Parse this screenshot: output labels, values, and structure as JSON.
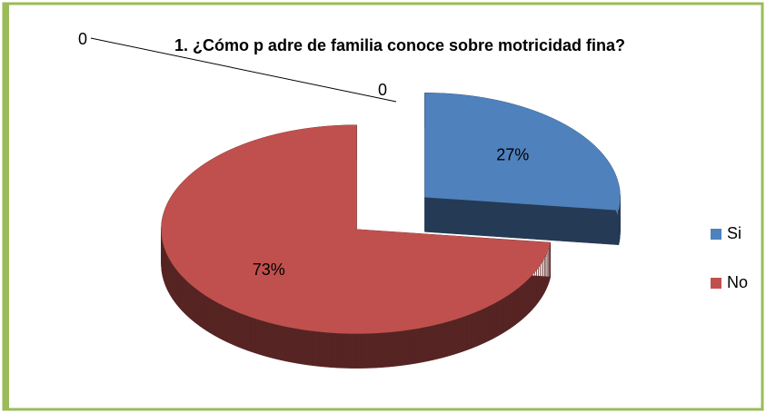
{
  "chart_data": {
    "type": "pie",
    "title": "1. ¿Cómo p adre de familia conoce sobre motricidad fina?",
    "categories": [
      "Si",
      "No"
    ],
    "values": [
      27,
      73
    ],
    "value_labels": [
      "27%",
      "73%"
    ],
    "colors": [
      "#4f81bd",
      "#c0504d"
    ],
    "legend": "right",
    "annotations": [
      "0",
      "0"
    ]
  }
}
